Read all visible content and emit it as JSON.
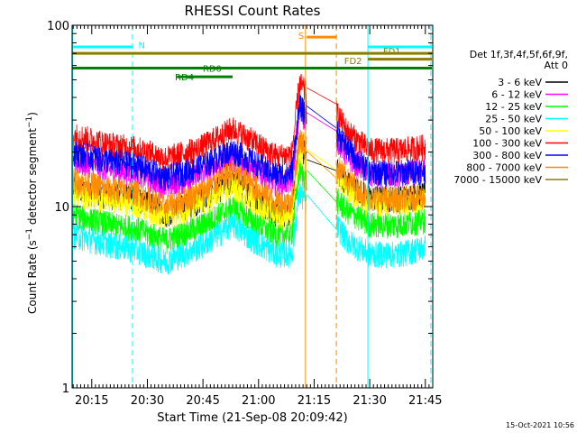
{
  "chart_data": {
    "type": "line",
    "title": "RHESSI Count Rates",
    "xlabel": "Start Time (21-Sep-08 20:09:42)",
    "ylabel_prefix": "Count Rate (s",
    "ylabel_sup": "−1",
    "ylabel_mid": " detector segment",
    "ylabel_suffix": ")",
    "y_scale": "log",
    "ylim": [
      1,
      100
    ],
    "y_ticks": [
      {
        "value": 1,
        "label": "1"
      },
      {
        "value": 10,
        "label": "10"
      },
      {
        "value": 100,
        "label": "100"
      }
    ],
    "x_time_range": [
      "20:09:42",
      "21:47:00"
    ],
    "x_ticks": [
      {
        "time": "20:15",
        "label": "20:15"
      },
      {
        "time": "20:30",
        "label": "20:30"
      },
      {
        "time": "20:45",
        "label": "20:45"
      },
      {
        "time": "21:00",
        "label": "21:00"
      },
      {
        "time": "21:15",
        "label": "21:15"
      },
      {
        "time": "21:30",
        "label": "21:30"
      },
      {
        "time": "21:45",
        "label": "21:45"
      }
    ],
    "timestamp": "15-Oct-2021 10:56",
    "legend": {
      "placement": "right",
      "header": [
        "Det 1f,3f,4f,5f,6f,9f,",
        "Att 0"
      ]
    },
    "series": [
      {
        "name": "3 - 6 keV",
        "color": "#000000",
        "values": [
          [
            "20:10",
            12.5
          ],
          [
            "20:20",
            11.5
          ],
          [
            "20:27",
            11.2
          ],
          [
            "20:35",
            9.2
          ],
          [
            "20:44",
            10.8
          ],
          [
            "20:53",
            14.0
          ],
          [
            "21:00",
            11.0
          ],
          [
            "21:05",
            9.0
          ],
          [
            "21:09",
            9.5
          ],
          [
            "21:11",
            22.0
          ],
          [
            "21:13",
            19.0
          ],
          [
            "21:21",
            16.0
          ],
          [
            "21:24",
            13.5
          ],
          [
            "21:30",
            11.2
          ],
          [
            "21:38",
            11.2
          ],
          [
            "21:45",
            11.8
          ]
        ]
      },
      {
        "name": "6 - 12 keV",
        "color": "#ff00ff",
        "values": [
          [
            "20:10",
            18.0
          ],
          [
            "20:20",
            16.0
          ],
          [
            "20:27",
            15.5
          ],
          [
            "20:35",
            13.0
          ],
          [
            "20:44",
            15.0
          ],
          [
            "20:53",
            19.0
          ],
          [
            "21:00",
            15.5
          ],
          [
            "21:05",
            13.5
          ],
          [
            "21:09",
            14.0
          ],
          [
            "21:11",
            34.0
          ],
          [
            "21:13",
            30.0
          ],
          [
            "21:21",
            24.0
          ],
          [
            "21:24",
            19.0
          ],
          [
            "21:30",
            15.0
          ],
          [
            "21:38",
            15.0
          ],
          [
            "21:45",
            16.0
          ]
        ]
      },
      {
        "name": "12 - 25 keV",
        "color": "#00ff00",
        "values": [
          [
            "20:10",
            9.0
          ],
          [
            "20:20",
            8.0
          ],
          [
            "20:27",
            7.6
          ],
          [
            "20:35",
            6.5
          ],
          [
            "20:44",
            7.8
          ],
          [
            "20:53",
            10.0
          ],
          [
            "21:00",
            8.0
          ],
          [
            "21:05",
            7.0
          ],
          [
            "21:09",
            7.2
          ],
          [
            "21:11",
            16.0
          ],
          [
            "21:13",
            14.0
          ],
          [
            "21:21",
            11.0
          ],
          [
            "21:24",
            9.5
          ],
          [
            "21:30",
            8.0
          ],
          [
            "21:38",
            8.0
          ],
          [
            "21:45",
            8.5
          ]
        ]
      },
      {
        "name": "25 - 50 keV",
        "color": "#00ffff",
        "values": [
          [
            "20:10",
            7.0
          ],
          [
            "20:20",
            6.2
          ],
          [
            "20:27",
            5.8
          ],
          [
            "20:35",
            5.0
          ],
          [
            "20:44",
            6.0
          ],
          [
            "20:53",
            8.0
          ],
          [
            "21:00",
            6.3
          ],
          [
            "21:05",
            5.5
          ],
          [
            "21:09",
            5.5
          ],
          [
            "21:11",
            12.0
          ],
          [
            "21:13",
            10.5
          ],
          [
            "21:21",
            8.0
          ],
          [
            "21:24",
            6.5
          ],
          [
            "21:30",
            5.5
          ],
          [
            "21:38",
            5.5
          ],
          [
            "21:45",
            6.0
          ]
        ]
      },
      {
        "name": "50 - 100 keV",
        "color": "#ffff00",
        "values": [
          [
            "20:10",
            12.0
          ],
          [
            "20:20",
            10.8
          ],
          [
            "20:27",
            10.5
          ],
          [
            "20:35",
            8.8
          ],
          [
            "20:44",
            10.3
          ],
          [
            "20:53",
            13.0
          ],
          [
            "21:00",
            10.5
          ],
          [
            "21:05",
            9.0
          ],
          [
            "21:09",
            9.2
          ],
          [
            "21:11",
            20.0
          ],
          [
            "21:13",
            18.0
          ],
          [
            "21:21",
            15.0
          ],
          [
            "21:24",
            12.5
          ],
          [
            "21:30",
            10.5
          ],
          [
            "21:38",
            10.5
          ],
          [
            "21:45",
            11.0
          ]
        ]
      },
      {
        "name": "100 - 300 keV",
        "color": "#ff0000",
        "values": [
          [
            "20:10",
            25.0
          ],
          [
            "20:20",
            22.0
          ],
          [
            "20:27",
            21.0
          ],
          [
            "20:35",
            18.5
          ],
          [
            "20:44",
            21.0
          ],
          [
            "20:53",
            27.0
          ],
          [
            "21:00",
            22.0
          ],
          [
            "21:05",
            19.0
          ],
          [
            "21:09",
            19.5
          ],
          [
            "21:11",
            48.0
          ],
          [
            "21:13",
            42.0
          ],
          [
            "21:21",
            33.0
          ],
          [
            "21:24",
            26.0
          ],
          [
            "21:30",
            20.5
          ],
          [
            "21:38",
            20.5
          ],
          [
            "21:45",
            21.5
          ]
        ]
      },
      {
        "name": "300 - 800 keV",
        "color": "#0000ff",
        "values": [
          [
            "20:10",
            20.0
          ],
          [
            "20:20",
            18.0
          ],
          [
            "20:27",
            17.0
          ],
          [
            "20:35",
            14.5
          ],
          [
            "20:44",
            16.5
          ],
          [
            "20:53",
            20.5
          ],
          [
            "21:00",
            17.0
          ],
          [
            "21:05",
            15.0
          ],
          [
            "21:09",
            15.5
          ],
          [
            "21:11",
            36.0
          ],
          [
            "21:13",
            32.0
          ],
          [
            "21:21",
            26.0
          ],
          [
            "21:24",
            21.0
          ],
          [
            "21:30",
            15.5
          ],
          [
            "21:38",
            15.5
          ],
          [
            "21:45",
            16.0
          ]
        ]
      },
      {
        "name": "800 - 7000 keV",
        "color": "#ff8c00",
        "values": [
          [
            "20:10",
            14.0
          ],
          [
            "20:20",
            12.5
          ],
          [
            "20:27",
            12.0
          ],
          [
            "20:35",
            10.0
          ],
          [
            "20:44",
            12.0
          ],
          [
            "20:53",
            15.5
          ],
          [
            "21:00",
            12.5
          ],
          [
            "21:05",
            10.5
          ],
          [
            "21:09",
            10.8
          ],
          [
            "21:11",
            24.0
          ],
          [
            "21:13",
            21.0
          ],
          [
            "21:21",
            17.0
          ],
          [
            "21:24",
            14.0
          ],
          [
            "21:30",
            11.2
          ],
          [
            "21:38",
            11.0
          ],
          [
            "21:45",
            11.5
          ]
        ]
      },
      {
        "name": "7000 - 15000 keV",
        "color": "#8b7d00",
        "values": []
      }
    ],
    "markers": {
      "vertical_solid": [
        {
          "time": "20:09:50",
          "color": "#00ffff"
        },
        {
          "time": "21:12:40",
          "color": "#ff8c00"
        },
        {
          "time": "21:29:30",
          "color": "#00ffff"
        }
      ],
      "vertical_dashed": [
        {
          "time": "20:26:00",
          "color": "#00ffff"
        },
        {
          "time": "21:21:00",
          "color": "#ff8c00"
        },
        {
          "time": "21:46:30",
          "color": "#00ffff"
        }
      ],
      "bars": [
        {
          "label": "N",
          "start": "20:09:42",
          "end": "20:26:00",
          "value": 76,
          "color": "#00ffff",
          "label_pos": "right"
        },
        {
          "label": "S",
          "start": "21:13:00",
          "end": "21:21:00",
          "value": 86,
          "color": "#ff8c00",
          "label_pos": "left"
        },
        {
          "label": "FD1",
          "start": "21:29:30",
          "end": "21:47:00",
          "value": 76,
          "color": "#00ffff",
          "label_pos": "below"
        },
        {
          "label": "FD2",
          "start": "20:09:42",
          "end": "21:47:00",
          "value": 70,
          "color": "#8b7d00",
          "label_pos": "none"
        },
        {
          "label": "FD2_b",
          "start": "21:29:30",
          "end": "21:47:00",
          "value": 65,
          "color": "#8b7d00",
          "label_pos": "none"
        },
        {
          "label": "RD0",
          "start": "20:09:42",
          "end": "21:47:00",
          "value": 58,
          "color": "#008000",
          "label_pos": "none"
        },
        {
          "label": "RD4",
          "start": "20:38:00",
          "end": "20:53:00",
          "value": 52,
          "color": "#008000",
          "label_pos": "left"
        }
      ],
      "bar_labels": [
        {
          "text": "N",
          "time": "20:28:30",
          "value": 78,
          "color": "#00ffff"
        },
        {
          "text": "S",
          "time": "21:11:30",
          "value": 88,
          "color": "#ff8c00"
        },
        {
          "text": "FD1",
          "time": "21:36:00",
          "value": 72,
          "color": "#8b7d00"
        },
        {
          "text": "FD2",
          "time": "21:25:30",
          "value": 64,
          "color": "#8b7d00"
        },
        {
          "text": "RD0",
          "time": "20:47:30",
          "value": 58,
          "color": "#008000"
        },
        {
          "text": "RD4",
          "time": "20:40:00",
          "value": 52,
          "color": "#008000"
        }
      ]
    },
    "gaps": [
      [
        "21:13:00",
        "21:21:00"
      ]
    ]
  }
}
